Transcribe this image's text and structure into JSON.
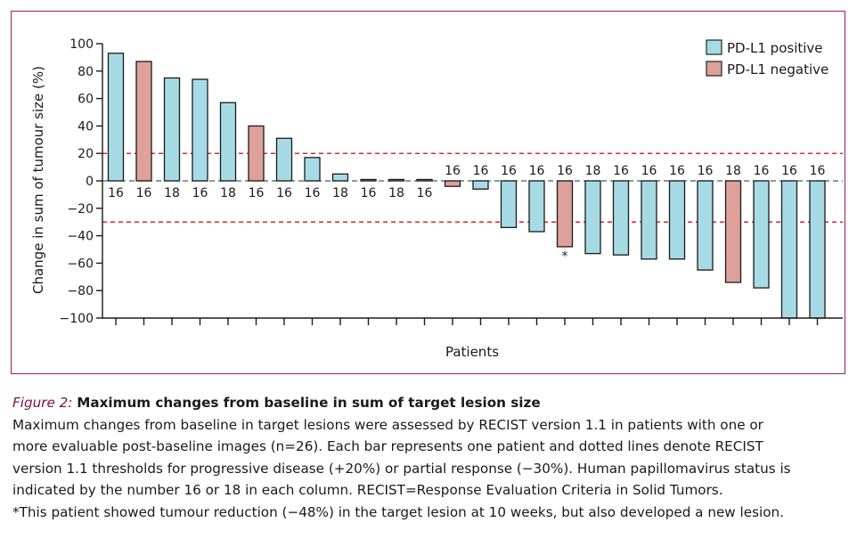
{
  "figure": {
    "label": "Figure 2:",
    "title": "Maximum changes from baseline in sum of target lesion size",
    "caption_lines": [
      "Maximum changes from baseline in target lesions were assessed by RECIST version 1.1 in patients with one or",
      "more evaluable post-baseline images (n=26). Each bar represents one patient and dotted lines denote RECIST",
      "version 1.1 thresholds for progressive disease (+20%) or partial response (−30%). Human papillomavirus status is",
      "indicated by the number 16 or 18 in each column. RECIST=Response Evaluation Criteria in Solid Tumors.",
      "*This patient showed tumour reduction (−48%) in the target lesion at 10 weeks, but also developed a new lesion."
    ]
  },
  "chart_data": {
    "type": "bar",
    "ylabel": "Change in sum of tumour size (%)",
    "xlabel": "Patients",
    "ylim": [
      -100,
      100
    ],
    "yticks": [
      100,
      80,
      60,
      40,
      20,
      0,
      -20,
      -40,
      -60,
      -80,
      -100
    ],
    "ytick_labels": [
      "100",
      "80",
      "60",
      "40",
      "20",
      "0",
      "−20",
      "−40",
      "−60",
      "−80",
      "−100"
    ],
    "thresholds": [
      20,
      -30
    ],
    "legend": [
      {
        "name": "PD-L1 positive",
        "color": "#a6dbe5"
      },
      {
        "name": "PD-L1 negative",
        "color": "#dda09b"
      }
    ],
    "legend_position": "top-right",
    "values": [
      93,
      87,
      75,
      74,
      57,
      40,
      31,
      17,
      5,
      1,
      1,
      1,
      -4,
      -6,
      -34,
      -37,
      -48,
      -53,
      -54,
      -57,
      -57,
      -65,
      -74,
      -78,
      -100,
      -100
    ],
    "pdl1": [
      "positive",
      "negative",
      "positive",
      "positive",
      "positive",
      "negative",
      "positive",
      "positive",
      "positive",
      "positive",
      "positive",
      "positive",
      "negative",
      "positive",
      "positive",
      "positive",
      "negative",
      "positive",
      "positive",
      "positive",
      "positive",
      "positive",
      "negative",
      "positive",
      "positive",
      "positive"
    ],
    "hpv": [
      "16",
      "16",
      "18",
      "16",
      "18",
      "16",
      "16",
      "16",
      "18",
      "16",
      "18",
      "16",
      "16",
      "16",
      "16",
      "16",
      "16",
      "18",
      "16",
      "16",
      "16",
      "16",
      "18",
      "16",
      "16",
      "16"
    ],
    "annotations": [
      {
        "index": 16,
        "text": "*"
      }
    ]
  }
}
